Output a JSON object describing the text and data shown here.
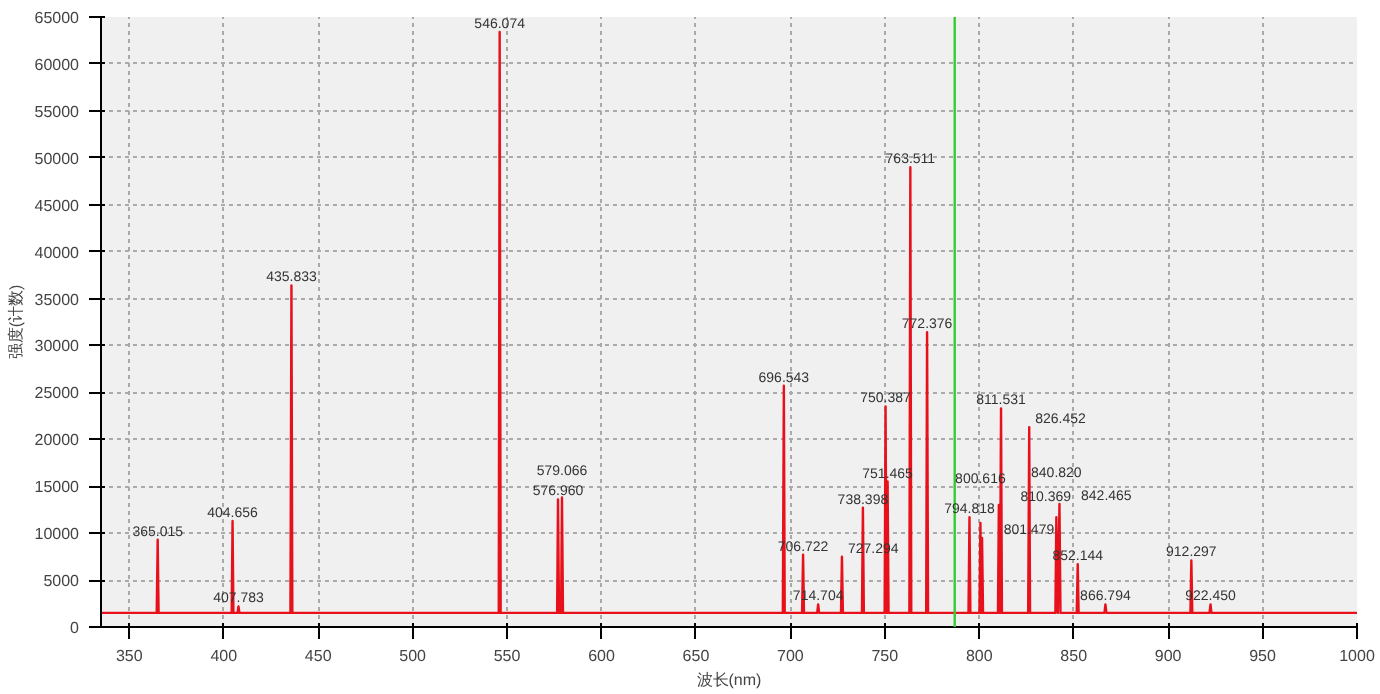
{
  "chart_data": {
    "type": "line",
    "xlabel": "波长(nm)",
    "ylabel": "强度(计数)",
    "x": [
      335,
      364.5,
      365.015,
      365.5,
      404.2,
      404.656,
      405.1,
      407.3,
      407.783,
      408.3,
      435.3,
      435.833,
      436.3,
      545.6,
      546.074,
      546.6,
      576.5,
      576.96,
      577.5,
      578.6,
      579.066,
      579.6,
      696.0,
      696.543,
      697.0,
      706.2,
      706.722,
      707.2,
      714.2,
      714.704,
      715.2,
      726.8,
      727.294,
      727.8,
      737.9,
      738.398,
      738.9,
      749.9,
      750.387,
      750.93,
      751.465,
      751.97,
      763.0,
      763.511,
      764.0,
      771.9,
      772.376,
      772.9,
      794.3,
      794.818,
      795.3,
      800.1,
      800.616,
      801.05,
      801.479,
      802.0,
      809.9,
      810.369,
      810.95,
      811.531,
      812.0,
      825.9,
      826.452,
      826.9,
      840.3,
      840.82,
      841.6,
      842.465,
      843.0,
      851.6,
      852.144,
      852.6,
      866.3,
      866.794,
      867.3,
      911.8,
      912.297,
      912.8,
      921.9,
      922.45,
      922.9,
      1000
    ],
    "series": [
      {
        "color": "#e8101a",
        "values": [
          1500,
          1500,
          9300,
          1500,
          1500,
          11300,
          1500,
          1500,
          2200,
          1500,
          1500,
          36400,
          1500,
          1500,
          63400,
          1500,
          1500,
          13600,
          1500,
          1500,
          13800,
          1500,
          1500,
          25700,
          1500,
          1500,
          7700,
          1500,
          1500,
          2400,
          1500,
          1500,
          7500,
          1500,
          1500,
          12700,
          1500,
          1500,
          23500,
          1500,
          15500,
          1500,
          1500,
          49000,
          1500,
          1500,
          31400,
          1500,
          1500,
          11700,
          1500,
          1500,
          11100,
          1500,
          9500,
          1500,
          1500,
          13000,
          1500,
          23300,
          1500,
          1500,
          21300,
          1500,
          1500,
          11700,
          1500,
          13100,
          1500,
          1500,
          6700,
          1500,
          1500,
          2400,
          1500,
          1500,
          7100,
          1500,
          1500,
          2400,
          1500,
          1500
        ]
      }
    ],
    "xlim": [
      335,
      1000
    ],
    "ylim": [
      0,
      65000
    ],
    "xticks": [
      350,
      400,
      450,
      500,
      550,
      600,
      650,
      700,
      750,
      800,
      850,
      900,
      950,
      1000
    ],
    "yticks": [
      0,
      5000,
      10000,
      15000,
      20000,
      25000,
      30000,
      35000,
      40000,
      45000,
      50000,
      55000,
      60000,
      65000
    ],
    "grid": true,
    "marker": "none",
    "line_style": "solid",
    "ref_lines": [
      {
        "axis": "x",
        "value": 787,
        "color": "#33cc33"
      }
    ],
    "annotations": [
      {
        "text": "365.015",
        "x": 365.015,
        "y": 9300
      },
      {
        "text": "404.656",
        "x": 404.656,
        "y": 11300
      },
      {
        "text": "407.783",
        "x": 407.783,
        "y": 2200
      },
      {
        "text": "435.833",
        "x": 435.833,
        "y": 36400
      },
      {
        "text": "546.074",
        "x": 546.074,
        "y": 63400
      },
      {
        "text": "576.960",
        "x": 576.96,
        "y": 13600
      },
      {
        "text": "579.066",
        "x": 579.066,
        "y": 13800
      },
      {
        "text": "696.543",
        "x": 696.543,
        "y": 25700
      },
      {
        "text": "706.722",
        "x": 706.722,
        "y": 7700
      },
      {
        "text": "714.704",
        "x": 714.704,
        "y": 2400
      },
      {
        "text": "727.294",
        "x": 727.294,
        "y": 7500
      },
      {
        "text": "738.398",
        "x": 738.398,
        "y": 12700
      },
      {
        "text": "750.387",
        "x": 750.387,
        "y": 23500
      },
      {
        "text": "751.465",
        "x": 751.465,
        "y": 15500
      },
      {
        "text": "763.511",
        "x": 763.511,
        "y": 49000
      },
      {
        "text": "772.376",
        "x": 772.376,
        "y": 31400
      },
      {
        "text": "794.818",
        "x": 794.818,
        "y": 11700
      },
      {
        "text": "800.616",
        "x": 800.616,
        "y": 11100
      },
      {
        "text": "801.479",
        "x": 801.479,
        "y": 9500
      },
      {
        "text": "810.369",
        "x": 810.369,
        "y": 13000
      },
      {
        "text": "811.531",
        "x": 811.531,
        "y": 23300
      },
      {
        "text": "826.452",
        "x": 826.452,
        "y": 21300
      },
      {
        "text": "840.820",
        "x": 840.82,
        "y": 11700
      },
      {
        "text": "842.465",
        "x": 842.465,
        "y": 13100
      },
      {
        "text": "852.144",
        "x": 852.144,
        "y": 6700
      },
      {
        "text": "866.794",
        "x": 866.794,
        "y": 2400
      },
      {
        "text": "912.297",
        "x": 912.297,
        "y": 7100
      },
      {
        "text": "922.450",
        "x": 922.45,
        "y": 2400
      }
    ]
  }
}
